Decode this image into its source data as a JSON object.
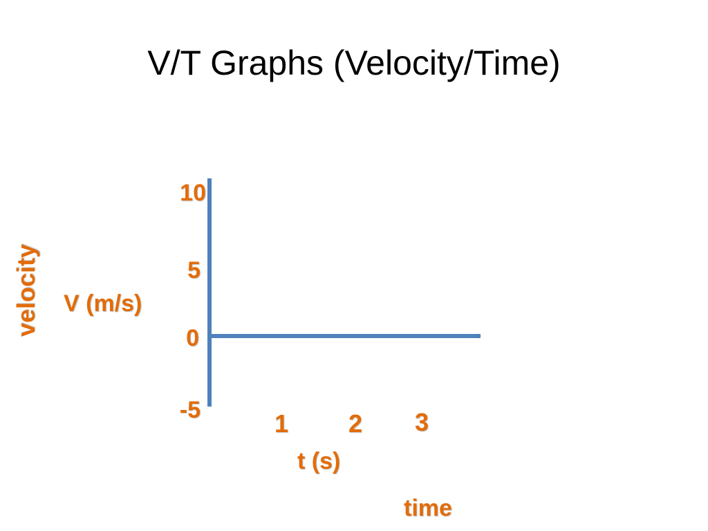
{
  "slide": {
    "title": "V/T Graphs (Velocity/Time)"
  },
  "colors": {
    "axis": "#4F81BD",
    "label": "#E36C0A",
    "title": "#000000"
  },
  "chart_data": {
    "type": "line",
    "title": "",
    "xlabel_unit": "t (s)",
    "xlabel_word": "time",
    "ylabel_unit": "V (m/s)",
    "ylabel_word": "velocity",
    "x_ticks": [
      "1",
      "2",
      "3"
    ],
    "y_ticks": [
      "10",
      "5",
      "0",
      "-5"
    ],
    "xlim": [
      0,
      3.6
    ],
    "ylim": [
      -5,
      10
    ],
    "grid": false,
    "series": []
  }
}
